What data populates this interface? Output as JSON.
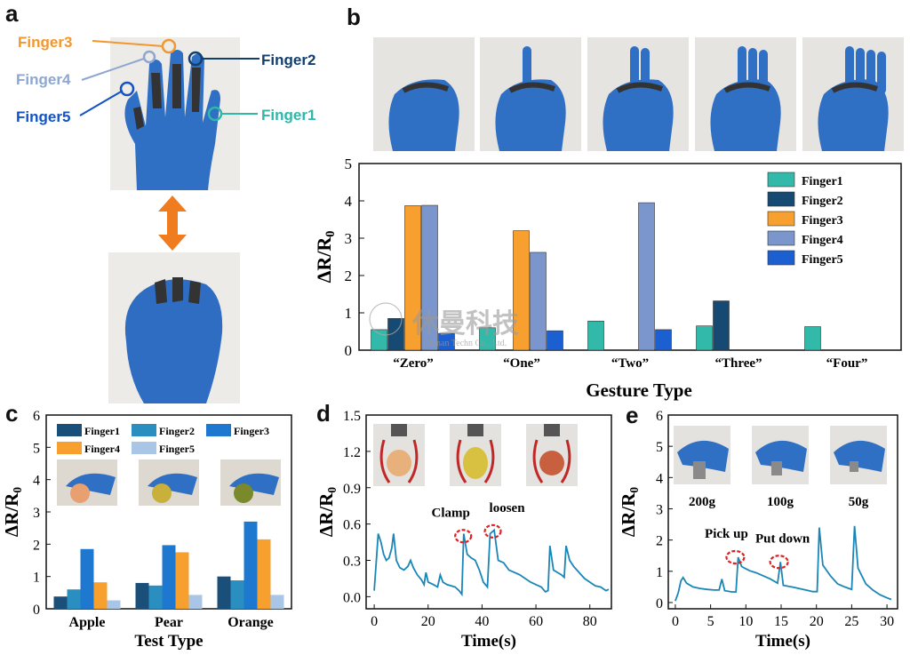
{
  "panels": {
    "a": "a",
    "b": "b",
    "c": "c",
    "d": "d",
    "e": "e"
  },
  "panel_a": {
    "labels": [
      {
        "text": "Finger3",
        "color": "#f2962e"
      },
      {
        "text": "Finger4",
        "color": "#8ea6d0"
      },
      {
        "text": "Finger5",
        "color": "#1452c4"
      },
      {
        "text": "Finger2",
        "color": "#123f6e"
      },
      {
        "text": "Finger1",
        "color": "#2fb7a8"
      }
    ],
    "arrow_color": "#ef7d1f"
  },
  "watermark": {
    "cn": "休曼科技",
    "en": "Human Techn Co., Ltd."
  },
  "chart_data": [
    {
      "id": "b",
      "type": "bar",
      "categories": [
        "“Zero”",
        "“One”",
        "“Two”",
        "“Three”",
        "“Four”"
      ],
      "xlabel": "Gesture Type",
      "ylabel": "ΔR/R",
      "ylabel_sub": "0",
      "ylim": [
        0,
        5
      ],
      "yticks": [
        0,
        1,
        2,
        3,
        4,
        5
      ],
      "legend_position": "top-right",
      "series": [
        {
          "name": "Finger1",
          "color": "#33b9a9",
          "values": [
            0.55,
            0.6,
            0.78,
            0.65,
            0.63
          ]
        },
        {
          "name": "Finger2",
          "color": "#164a72",
          "values": [
            0.85,
            0,
            0,
            1.32,
            0
          ]
        },
        {
          "name": "Finger3",
          "color": "#f7a030",
          "values": [
            3.87,
            3.2,
            0,
            0,
            0
          ]
        },
        {
          "name": "Finger4",
          "color": "#7a96cc",
          "values": [
            3.88,
            2.62,
            3.95,
            0,
            0
          ]
        },
        {
          "name": "Finger5",
          "color": "#1c5fd0",
          "values": [
            0.45,
            0.52,
            0.55,
            0,
            0
          ]
        }
      ]
    },
    {
      "id": "c",
      "type": "bar",
      "categories": [
        "Apple",
        "Pear",
        "Orange"
      ],
      "xlabel": "Test Type",
      "ylabel": "ΔR/R",
      "ylabel_sub": "0",
      "ylim": [
        0,
        6
      ],
      "yticks": [
        0,
        1,
        2,
        3,
        4,
        5,
        6
      ],
      "legend_position": "top",
      "series": [
        {
          "name": "Finger1",
          "color": "#1a4f7a",
          "values": [
            0.38,
            0.8,
            1.0
          ]
        },
        {
          "name": "Finger2",
          "color": "#2a8fc0",
          "values": [
            0.6,
            0.72,
            0.88
          ]
        },
        {
          "name": "Finger3",
          "color": "#1f78d0",
          "values": [
            1.85,
            1.97,
            2.7
          ]
        },
        {
          "name": "Finger4",
          "color": "#f7a030",
          "values": [
            0.82,
            1.75,
            2.15
          ]
        },
        {
          "name": "Finger5",
          "color": "#a9c6e6",
          "values": [
            0.26,
            0.43,
            0.43
          ]
        }
      ],
      "images": [
        "apple",
        "pear",
        "orange"
      ]
    },
    {
      "id": "d",
      "type": "line",
      "xlabel": "Time(s)",
      "ylabel": "ΔR/R",
      "ylabel_sub": "0",
      "xlim": [
        -3,
        88
      ],
      "ylim": [
        -0.1,
        1.5
      ],
      "xticks": [
        0,
        20,
        40,
        60,
        80
      ],
      "yticks": [
        0.0,
        0.3,
        0.6,
        0.9,
        1.2,
        1.5
      ],
      "color": "#1a86b8",
      "annotations": [
        {
          "text": "Clamp",
          "x": 33,
          "y": 0.5
        },
        {
          "text": "loosen",
          "x": 44,
          "y": 0.54
        }
      ],
      "points": [
        [
          0,
          0.05
        ],
        [
          0.8,
          0.3
        ],
        [
          1.5,
          0.52
        ],
        [
          2.5,
          0.45
        ],
        [
          3.5,
          0.35
        ],
        [
          4.5,
          0.3
        ],
        [
          5.5,
          0.32
        ],
        [
          6.5,
          0.4
        ],
        [
          7.2,
          0.52
        ],
        [
          8.2,
          0.3
        ],
        [
          9.5,
          0.24
        ],
        [
          11,
          0.22
        ],
        [
          12.5,
          0.25
        ],
        [
          13.5,
          0.3
        ],
        [
          14.5,
          0.24
        ],
        [
          16,
          0.18
        ],
        [
          17.5,
          0.14
        ],
        [
          18.5,
          0.1
        ],
        [
          19.2,
          0.2
        ],
        [
          20,
          0.12
        ],
        [
          22,
          0.1
        ],
        [
          23.5,
          0.08
        ],
        [
          24.5,
          0.18
        ],
        [
          25.5,
          0.12
        ],
        [
          27,
          0.1
        ],
        [
          28.5,
          0.09
        ],
        [
          30,
          0.08
        ],
        [
          31.5,
          0.05
        ],
        [
          32.5,
          0.02
        ],
        [
          33.2,
          0.52
        ],
        [
          34.5,
          0.35
        ],
        [
          36,
          0.32
        ],
        [
          37.5,
          0.3
        ],
        [
          39,
          0.22
        ],
        [
          40.5,
          0.12
        ],
        [
          42,
          0.08
        ],
        [
          43,
          0.52
        ],
        [
          44.5,
          0.55
        ],
        [
          46,
          0.3
        ],
        [
          48,
          0.28
        ],
        [
          50,
          0.22
        ],
        [
          52,
          0.2
        ],
        [
          54,
          0.18
        ],
        [
          56,
          0.15
        ],
        [
          58,
          0.12
        ],
        [
          60,
          0.1
        ],
        [
          62,
          0.08
        ],
        [
          63.5,
          0.04
        ],
        [
          64.5,
          0.05
        ],
        [
          65.2,
          0.42
        ],
        [
          66.5,
          0.22
        ],
        [
          68,
          0.2
        ],
        [
          69.5,
          0.18
        ],
        [
          70.5,
          0.16
        ],
        [
          71.2,
          0.42
        ],
        [
          72.5,
          0.3
        ],
        [
          74,
          0.25
        ],
        [
          76,
          0.2
        ],
        [
          78,
          0.15
        ],
        [
          80,
          0.12
        ],
        [
          82,
          0.09
        ],
        [
          84,
          0.08
        ],
        [
          86,
          0.05
        ],
        [
          87,
          0.06
        ]
      ]
    },
    {
      "id": "e",
      "type": "line",
      "xlabel": "Time(s)",
      "ylabel": "ΔR/R",
      "ylabel_sub": "0",
      "xlim": [
        -1,
        31.5
      ],
      "ylim": [
        -0.2,
        6
      ],
      "xticks": [
        0,
        5,
        10,
        15,
        20,
        25,
        30
      ],
      "yticks": [
        0,
        1,
        2,
        3,
        4,
        5,
        6
      ],
      "color": "#1a86b8",
      "annotations": [
        {
          "text": "Pick up",
          "x": 8.5,
          "y": 1.45
        },
        {
          "text": "Put down",
          "x": 14.7,
          "y": 1.3
        }
      ],
      "weights": [
        "200g",
        "100g",
        "50g"
      ],
      "points": [
        [
          0,
          0.05
        ],
        [
          0.4,
          0.3
        ],
        [
          0.8,
          0.7
        ],
        [
          1.1,
          0.8
        ],
        [
          1.6,
          0.62
        ],
        [
          2.5,
          0.5
        ],
        [
          3.5,
          0.45
        ],
        [
          4.5,
          0.42
        ],
        [
          5.5,
          0.4
        ],
        [
          6.2,
          0.4
        ],
        [
          6.6,
          0.75
        ],
        [
          7,
          0.38
        ],
        [
          8,
          0.34
        ],
        [
          8.6,
          0.34
        ],
        [
          8.9,
          1.45
        ],
        [
          9.4,
          1.15
        ],
        [
          10.5,
          1.02
        ],
        [
          11.5,
          0.95
        ],
        [
          12.5,
          0.85
        ],
        [
          13.5,
          0.75
        ],
        [
          14.5,
          0.62
        ],
        [
          14.9,
          1.3
        ],
        [
          15.3,
          0.55
        ],
        [
          16.5,
          0.5
        ],
        [
          17.5,
          0.45
        ],
        [
          18.5,
          0.4
        ],
        [
          19.5,
          0.35
        ],
        [
          20.1,
          0.35
        ],
        [
          20.4,
          2.4
        ],
        [
          20.9,
          1.2
        ],
        [
          22,
          0.85
        ],
        [
          23,
          0.6
        ],
        [
          24,
          0.5
        ],
        [
          25,
          0.42
        ],
        [
          25.4,
          2.45
        ],
        [
          25.9,
          1.1
        ],
        [
          27,
          0.6
        ],
        [
          28,
          0.4
        ],
        [
          29,
          0.25
        ],
        [
          30,
          0.15
        ],
        [
          30.6,
          0.1
        ]
      ]
    }
  ]
}
